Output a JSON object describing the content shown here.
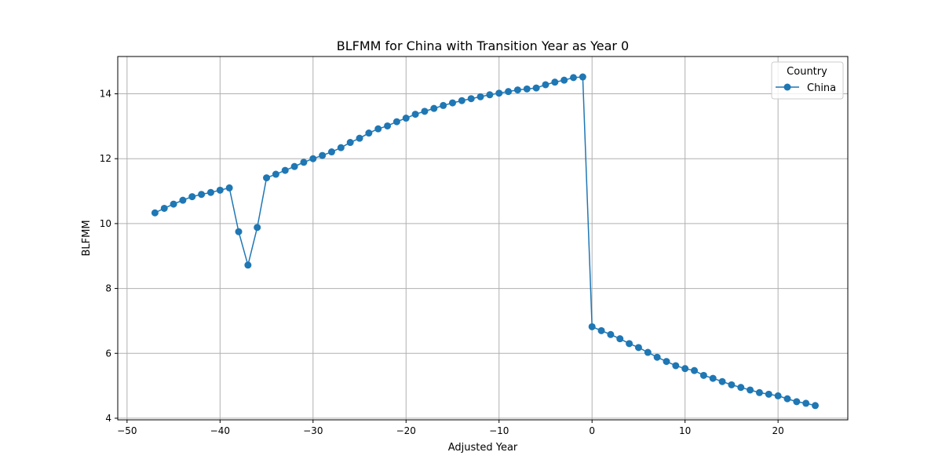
{
  "chart_data": {
    "type": "line",
    "title": "BLFMM for China with Transition Year as Year 0",
    "xlabel": "Adjusted Year",
    "ylabel": "BLFMM",
    "xlim": [
      -51,
      27.5
    ],
    "ylim": [
      3.95,
      15.15
    ],
    "xticks": [
      -50,
      -40,
      -30,
      -20,
      -10,
      0,
      10,
      20
    ],
    "xtick_labels": [
      "−50",
      "−40",
      "−30",
      "−20",
      "−10",
      "0",
      "10",
      "20"
    ],
    "yticks": [
      4,
      6,
      8,
      10,
      12,
      14
    ],
    "ytick_labels": [
      "4",
      "6",
      "8",
      "10",
      "12",
      "14"
    ],
    "grid": true,
    "legend": {
      "title": "Country",
      "position": "top-right"
    },
    "series": [
      {
        "name": "China",
        "color": "#1f77b4",
        "marker": "circle",
        "x": [
          -47,
          -46,
          -45,
          -44,
          -43,
          -42,
          -41,
          -40,
          -39,
          -38,
          -37,
          -36,
          -35,
          -34,
          -33,
          -32,
          -31,
          -30,
          -29,
          -28,
          -27,
          -26,
          -25,
          -24,
          -23,
          -22,
          -21,
          -20,
          -19,
          -18,
          -17,
          -16,
          -15,
          -14,
          -13,
          -12,
          -11,
          -10,
          -9,
          -8,
          -7,
          -6,
          -5,
          -4,
          -3,
          -2,
          -1,
          0,
          1,
          2,
          3,
          4,
          5,
          6,
          7,
          8,
          9,
          10,
          11,
          12,
          13,
          14,
          15,
          16,
          17,
          18,
          19,
          20,
          21,
          22,
          23,
          24
        ],
        "y": [
          10.33,
          10.47,
          10.6,
          10.72,
          10.83,
          10.9,
          10.96,
          11.03,
          11.1,
          9.75,
          8.72,
          9.88,
          11.41,
          11.52,
          11.64,
          11.76,
          11.89,
          12.0,
          12.1,
          12.21,
          12.34,
          12.5,
          12.63,
          12.79,
          12.92,
          13.01,
          13.14,
          13.25,
          13.37,
          13.46,
          13.55,
          13.64,
          13.72,
          13.79,
          13.85,
          13.91,
          13.97,
          14.02,
          14.07,
          14.12,
          14.15,
          14.18,
          14.28,
          14.36,
          14.42,
          14.5,
          14.52,
          6.82,
          6.7,
          6.58,
          6.45,
          6.3,
          6.18,
          6.03,
          5.88,
          5.75,
          5.62,
          5.53,
          5.47,
          5.32,
          5.23,
          5.13,
          5.03,
          4.95,
          4.87,
          4.79,
          4.74,
          4.69,
          4.6,
          4.51,
          4.46,
          4.39
        ]
      }
    ]
  }
}
